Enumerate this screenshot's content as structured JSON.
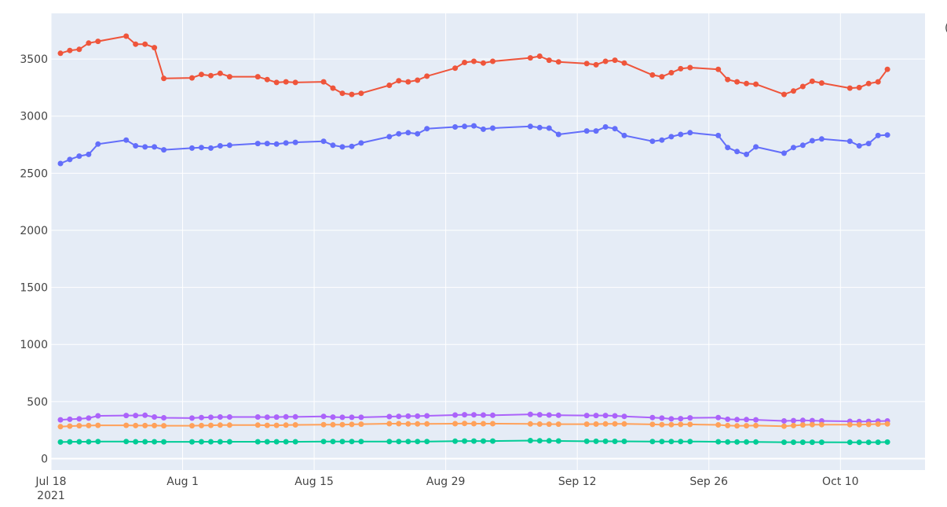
{
  "chart_data": {
    "type": "line",
    "title": "",
    "xlabel": "",
    "ylabel": "",
    "grid": true,
    "legend": "none",
    "ylim": [
      -100,
      3900
    ],
    "xlim": [
      "2021-07-18",
      "2021-10-19"
    ],
    "y_ticks": [
      0,
      500,
      1000,
      1500,
      2000,
      2500,
      3000,
      3500
    ],
    "x_ticks": [
      {
        "date": "2021-07-18",
        "label": "Jul 18",
        "sublabel": "2021"
      },
      {
        "date": "2021-08-01",
        "label": "Aug 1"
      },
      {
        "date": "2021-08-15",
        "label": "Aug 15"
      },
      {
        "date": "2021-08-29",
        "label": "Aug 29"
      },
      {
        "date": "2021-09-12",
        "label": "Sep 12"
      },
      {
        "date": "2021-09-26",
        "label": "Sep 26"
      },
      {
        "date": "2021-10-10",
        "label": "Oct 10"
      }
    ],
    "x": [
      "2021-07-19",
      "2021-07-20",
      "2021-07-21",
      "2021-07-22",
      "2021-07-23",
      "2021-07-26",
      "2021-07-27",
      "2021-07-28",
      "2021-07-29",
      "2021-07-30",
      "2021-08-02",
      "2021-08-03",
      "2021-08-04",
      "2021-08-05",
      "2021-08-06",
      "2021-08-09",
      "2021-08-10",
      "2021-08-11",
      "2021-08-12",
      "2021-08-13",
      "2021-08-16",
      "2021-08-17",
      "2021-08-18",
      "2021-08-19",
      "2021-08-20",
      "2021-08-23",
      "2021-08-24",
      "2021-08-25",
      "2021-08-26",
      "2021-08-27",
      "2021-08-30",
      "2021-08-31",
      "2021-09-01",
      "2021-09-02",
      "2021-09-03",
      "2021-09-07",
      "2021-09-08",
      "2021-09-09",
      "2021-09-10",
      "2021-09-13",
      "2021-09-14",
      "2021-09-15",
      "2021-09-16",
      "2021-09-17",
      "2021-09-20",
      "2021-09-21",
      "2021-09-22",
      "2021-09-23",
      "2021-09-24",
      "2021-09-27",
      "2021-09-28",
      "2021-09-29",
      "2021-09-30",
      "2021-10-01",
      "2021-10-04",
      "2021-10-05",
      "2021-10-06",
      "2021-10-07",
      "2021-10-08",
      "2021-10-11",
      "2021-10-12",
      "2021-10-13",
      "2021-10-14",
      "2021-10-15"
    ],
    "series": [
      {
        "color": "#ef553b",
        "values": [
          3550,
          3575,
          3585,
          3640,
          3655,
          3700,
          3630,
          3630,
          3600,
          3330,
          3335,
          3365,
          3355,
          3375,
          3345,
          3345,
          3320,
          3295,
          3300,
          3295,
          3300,
          3245,
          3200,
          3190,
          3200,
          3270,
          3310,
          3300,
          3315,
          3350,
          3420,
          3470,
          3480,
          3465,
          3480,
          3510,
          3525,
          3490,
          3475,
          3460,
          3450,
          3480,
          3490,
          3465,
          3360,
          3345,
          3380,
          3415,
          3425,
          3410,
          3320,
          3300,
          3285,
          3280,
          3190,
          3220,
          3260,
          3305,
          3290,
          3245,
          3250,
          3285,
          3300,
          3410
        ]
      },
      {
        "color": "#636efa",
        "values": [
          2585,
          2620,
          2650,
          2665,
          2755,
          2790,
          2740,
          2730,
          2730,
          2705,
          2720,
          2725,
          2720,
          2740,
          2745,
          2760,
          2760,
          2755,
          2765,
          2770,
          2780,
          2745,
          2730,
          2735,
          2765,
          2820,
          2845,
          2855,
          2845,
          2890,
          2905,
          2910,
          2915,
          2885,
          2895,
          2910,
          2900,
          2895,
          2840,
          2870,
          2870,
          2905,
          2890,
          2830,
          2780,
          2790,
          2820,
          2840,
          2855,
          2830,
          2725,
          2690,
          2665,
          2730,
          2675,
          2725,
          2745,
          2785,
          2800,
          2780,
          2740,
          2760,
          2830,
          2835
        ]
      },
      {
        "color": "#ab63fa",
        "values": [
          340,
          345,
          348,
          355,
          375,
          378,
          378,
          380,
          365,
          358,
          355,
          360,
          362,
          365,
          365,
          365,
          363,
          364,
          366,
          366,
          370,
          364,
          362,
          362,
          362,
          368,
          370,
          372,
          372,
          375,
          382,
          385,
          384,
          382,
          380,
          388,
          385,
          382,
          380,
          378,
          378,
          378,
          375,
          370,
          360,
          355,
          348,
          350,
          357,
          360,
          345,
          342,
          342,
          340,
          330,
          333,
          335,
          333,
          330,
          327,
          325,
          326,
          329,
          330
        ]
      },
      {
        "color": "#ffa15a",
        "values": [
          280,
          285,
          288,
          290,
          292,
          292,
          290,
          290,
          290,
          288,
          288,
          290,
          292,
          294,
          294,
          294,
          292,
          292,
          294,
          296,
          298,
          297,
          298,
          300,
          302,
          306,
          306,
          304,
          304,
          304,
          306,
          308,
          306,
          306,
          306,
          304,
          303,
          302,
          302,
          302,
          303,
          304,
          305,
          304,
          300,
          298,
          298,
          300,
          300,
          296,
          290,
          287,
          288,
          290,
          284,
          290,
          295,
          298,
          298,
          298,
          298,
          300,
          303,
          304
        ]
      },
      {
        "color": "#00cc96",
        "values": [
          145,
          147,
          148,
          148,
          150,
          150,
          148,
          148,
          148,
          147,
          147,
          148,
          148,
          148,
          148,
          148,
          148,
          148,
          148,
          148,
          150,
          150,
          150,
          150,
          150,
          150,
          150,
          150,
          150,
          150,
          153,
          154,
          154,
          154,
          154,
          158,
          157,
          156,
          155,
          152,
          152,
          152,
          151,
          151,
          150,
          150,
          150,
          150,
          150,
          148,
          146,
          146,
          146,
          146,
          144,
          144,
          144,
          144,
          144,
          143,
          143,
          143,
          144,
          145
        ]
      }
    ]
  }
}
